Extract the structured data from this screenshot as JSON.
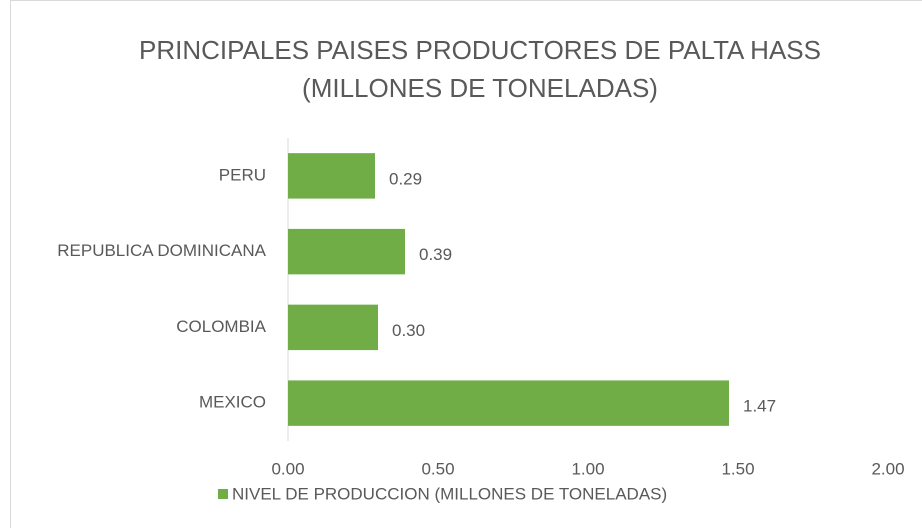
{
  "chart_data": {
    "type": "bar",
    "orientation": "horizontal",
    "title": [
      "PRINCIPALES PAISES PRODUCTORES DE PALTA HASS",
      "(MILLONES DE TONELADAS)"
    ],
    "categories": [
      "PERU",
      "REPUBLICA DOMINICANA",
      "COLOMBIA",
      "MEXICO"
    ],
    "series": [
      {
        "name": "NIVEL DE PRODUCCION (MILLONES DE TONELADAS)",
        "color": "#70ad47",
        "values": [
          0.29,
          0.39,
          0.3,
          1.47
        ],
        "value_labels": [
          "0.29",
          "0.39",
          "0.30",
          "1.47"
        ]
      }
    ],
    "xlim": [
      0,
      2
    ],
    "xticks": [
      {
        "value": 0,
        "label": "0.00"
      },
      {
        "value": 0.5,
        "label": "0.50"
      },
      {
        "value": 1,
        "label": "1.00"
      },
      {
        "value": 1.5,
        "label": "1.50"
      },
      {
        "value": 2,
        "label": "2.00"
      }
    ],
    "grid": false,
    "legend": "bottom"
  }
}
